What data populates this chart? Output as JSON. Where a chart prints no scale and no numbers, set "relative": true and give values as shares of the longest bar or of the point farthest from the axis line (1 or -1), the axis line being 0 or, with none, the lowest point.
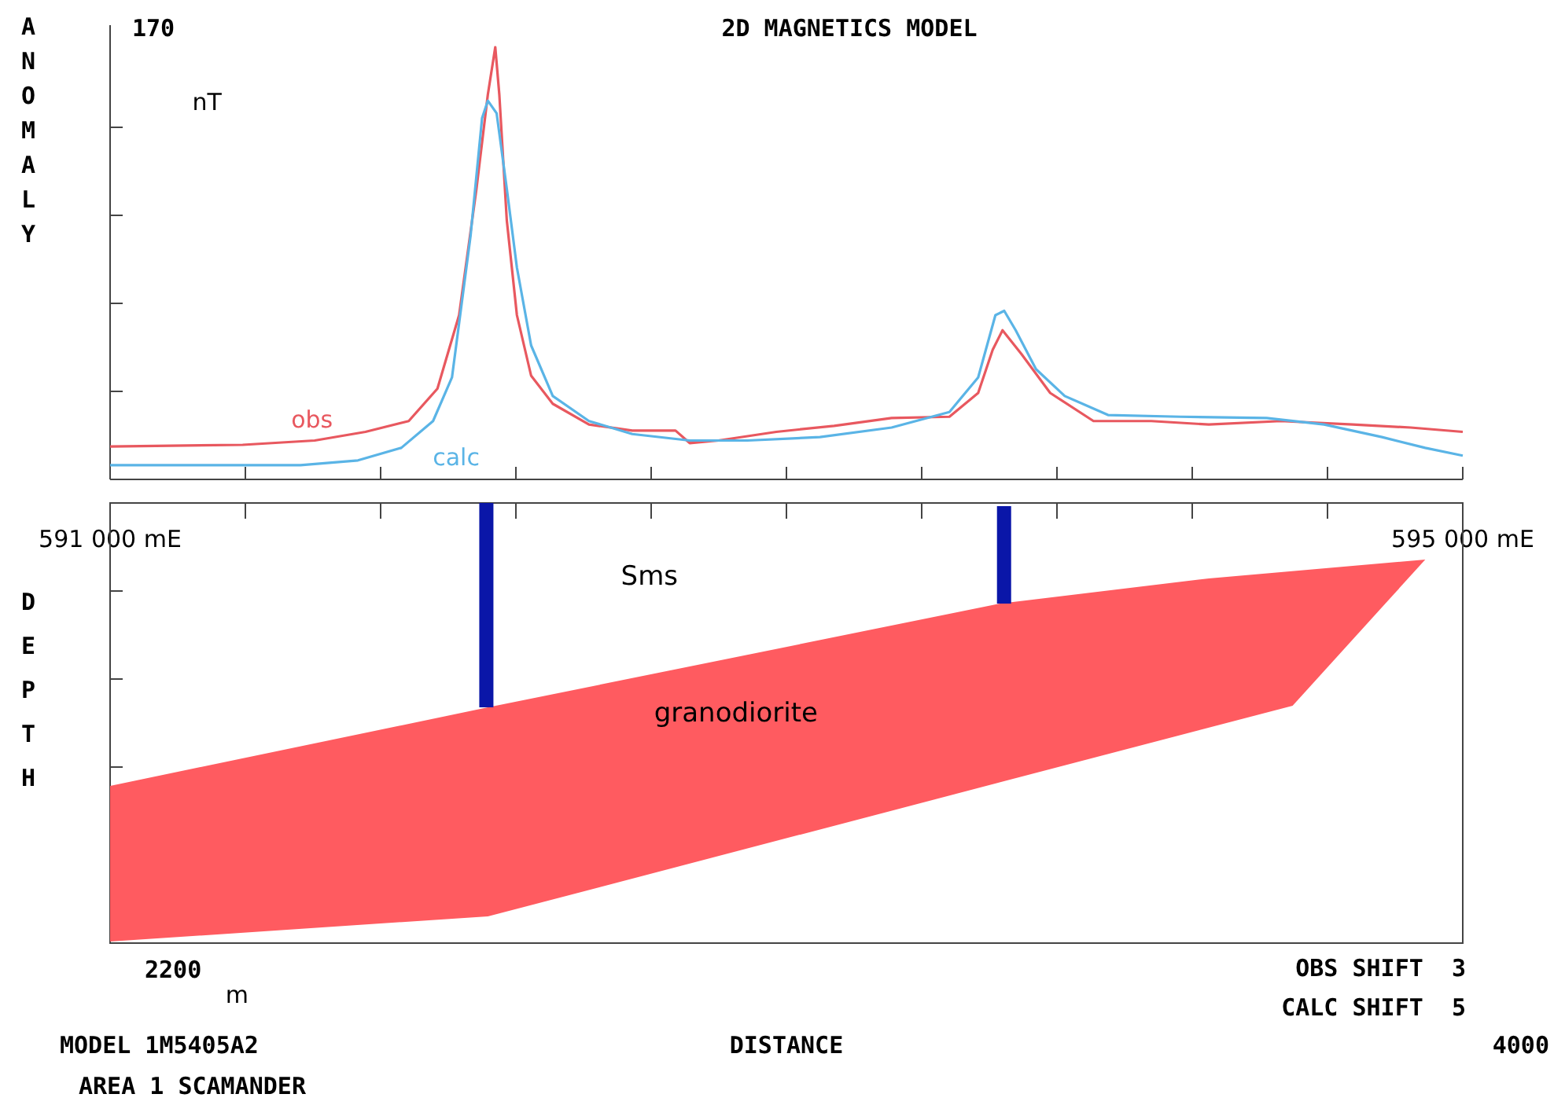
{
  "chart_data": [
    {
      "type": "line",
      "title": "2D MAGNETICS MODEL",
      "ylabel": "ANOMALY",
      "relative": true,
      "xlim": [
        591000,
        595000
      ],
      "xticks": [
        {
          "value": 591000,
          "label": "591 000 mE"
        },
        {
          "value": 591400,
          "label": null
        },
        {
          "value": 591800,
          "label": null
        },
        {
          "value": 592200,
          "label": null
        },
        {
          "value": 592600,
          "label": null
        },
        {
          "value": 593000,
          "label": null
        },
        {
          "value": 593400,
          "label": null
        },
        {
          "value": 593800,
          "label": null
        },
        {
          "value": 594200,
          "label": null
        },
        {
          "value": 594600,
          "label": null
        },
        {
          "value": 595000,
          "label": "595 000 mE"
        }
      ],
      "annotations": [
        "170",
        "nT"
      ],
      "series": [
        {
          "name": "obs",
          "color": "#e8585f",
          "x": [
            591000,
            591392,
            591605,
            591755,
            591883,
            591968,
            592032,
            592083,
            592117,
            592139,
            592151,
            592173,
            592203,
            592245,
            592309,
            592416,
            592544,
            592672,
            592714,
            592799,
            592970,
            593141,
            593311,
            593482,
            593567,
            593610,
            593639,
            593695,
            593780,
            593908,
            594079,
            594249,
            594462,
            594675,
            594846,
            595000
          ],
          "values": [
            0.076,
            0.08,
            0.09,
            0.11,
            0.135,
            0.21,
            0.38,
            0.67,
            0.89,
            1,
            0.89,
            0.6,
            0.38,
            0.24,
            0.175,
            0.127,
            0.113,
            0.113,
            0.084,
            0.09,
            0.11,
            0.124,
            0.142,
            0.145,
            0.2,
            0.3,
            0.345,
            0.29,
            0.2,
            0.135,
            0.135,
            0.127,
            0.135,
            0.127,
            0.12,
            0.11
          ]
        },
        {
          "name": "calc",
          "color": "#5ab4e6",
          "x": [
            591000,
            591563,
            591733,
            591861,
            591955,
            592011,
            592066,
            592100,
            592117,
            592143,
            592173,
            592203,
            592245,
            592309,
            592416,
            592544,
            592714,
            592885,
            593099,
            593311,
            593482,
            593567,
            593618,
            593644,
            593678,
            593738,
            593823,
            593951,
            594164,
            594420,
            594590,
            594761,
            594889,
            595000
          ],
          "values": [
            0.033,
            0.033,
            0.044,
            0.073,
            0.135,
            0.236,
            0.564,
            0.836,
            0.876,
            0.847,
            0.673,
            0.49,
            0.31,
            0.193,
            0.135,
            0.105,
            0.09,
            0.09,
            0.098,
            0.12,
            0.156,
            0.236,
            0.38,
            0.39,
            0.345,
            0.255,
            0.193,
            0.149,
            0.145,
            0.142,
            0.127,
            0.098,
            0.073,
            0.055
          ]
        }
      ]
    },
    {
      "type": "other",
      "xlabel": "DISTANCE",
      "ylabel": "DEPTH",
      "annotations": [
        "Sms",
        "granodiorite",
        "2200",
        "m",
        "OBS SHIFT  3",
        "CALC SHIFT  5",
        "4000",
        "MODEL 1M5405A2",
        "AREA 1 SCAMANDER"
      ]
    }
  ]
}
